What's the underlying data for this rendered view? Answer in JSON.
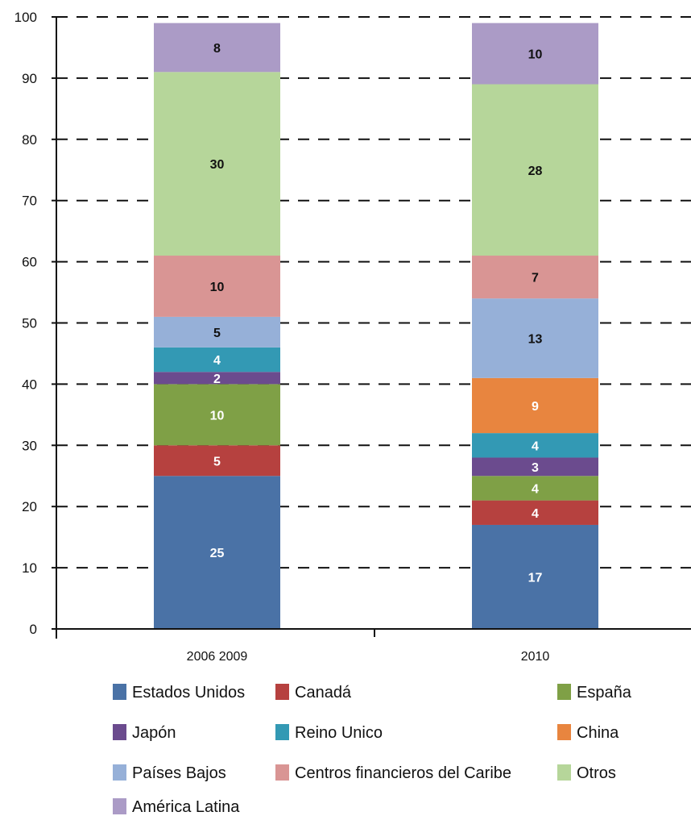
{
  "chart_data": {
    "type": "bar",
    "stacked": true,
    "categories": [
      "2006 2009",
      "2010"
    ],
    "series": [
      {
        "name": "Estados Unidos",
        "color": "#4a72a6",
        "labelColor": "#ffffff",
        "values": [
          25,
          17
        ]
      },
      {
        "name": "Canadá",
        "color": "#b6413f",
        "labelColor": "#ffffff",
        "values": [
          5,
          4
        ]
      },
      {
        "name": "España",
        "color": "#7fa046",
        "labelColor": "#ffffff",
        "values": [
          10,
          4
        ]
      },
      {
        "name": "Japón",
        "color": "#6b4b8e",
        "labelColor": "#ffffff",
        "values": [
          2,
          3
        ]
      },
      {
        "name": "Reino Unico",
        "color": "#3399b4",
        "labelColor": "#ffffff",
        "values": [
          4,
          4
        ]
      },
      {
        "name": "China",
        "color": "#e8853f",
        "labelColor": "#ffffff",
        "values": [
          0,
          9
        ]
      },
      {
        "name": "Países Bajos",
        "color": "#96b0d8",
        "labelColor": "#111111",
        "values": [
          5,
          13
        ]
      },
      {
        "name": "Centros financieros del Caribe",
        "color": "#d99594",
        "labelColor": "#111111",
        "values": [
          10,
          7
        ]
      },
      {
        "name": "Otros",
        "color": "#b6d69a",
        "labelColor": "#111111",
        "values": [
          30,
          28
        ]
      },
      {
        "name": "América Latina",
        "color": "#ab9bc6",
        "labelColor": "#111111",
        "values": [
          8,
          10
        ]
      }
    ],
    "ylim": [
      0,
      100
    ],
    "yticks": [
      0,
      10,
      20,
      30,
      40,
      50,
      60,
      70,
      80,
      90,
      100
    ],
    "grid": "dashed-horizontal",
    "legend_position": "bottom"
  }
}
